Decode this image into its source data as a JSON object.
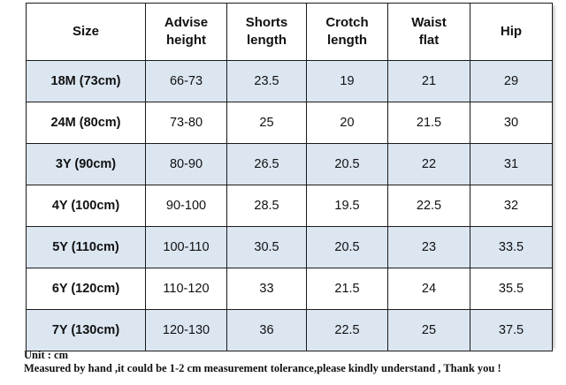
{
  "table": {
    "headers": [
      {
        "line1": "Size",
        "line2": ""
      },
      {
        "line1": "Advise",
        "line2": "height"
      },
      {
        "line1": "Shorts",
        "line2": "length"
      },
      {
        "line1": "Crotch",
        "line2": "length"
      },
      {
        "line1": "Waist",
        "line2": "flat"
      },
      {
        "line1": "Hip",
        "line2": ""
      }
    ],
    "rows": [
      [
        "18M (73cm)",
        "66-73",
        "23.5",
        "19",
        "21",
        "29"
      ],
      [
        "24M (80cm)",
        "73-80",
        "25",
        "20",
        "21.5",
        "30"
      ],
      [
        "3Y (90cm)",
        "80-90",
        "26.5",
        "20.5",
        "22",
        "31"
      ],
      [
        "4Y (100cm)",
        "90-100",
        "28.5",
        "19.5",
        "22.5",
        "32"
      ],
      [
        "5Y (110cm)",
        "100-110",
        "30.5",
        "20.5",
        "23",
        "33.5"
      ],
      [
        "6Y (120cm)",
        "110-120",
        "33",
        "21.5",
        "24",
        "35.5"
      ],
      [
        "7Y (130cm)",
        "120-130",
        "36",
        "22.5",
        "25",
        "37.5"
      ]
    ],
    "colors": {
      "shaded_row": "#dce6f1",
      "plain_row": "#ffffff",
      "border": "#1a1a1a"
    }
  },
  "notes": {
    "unit": "Unit : cm",
    "disclaimer": "Measured by hand ,it could be 1-2 cm measurement tolerance,please kindly understand , Thank you !"
  }
}
